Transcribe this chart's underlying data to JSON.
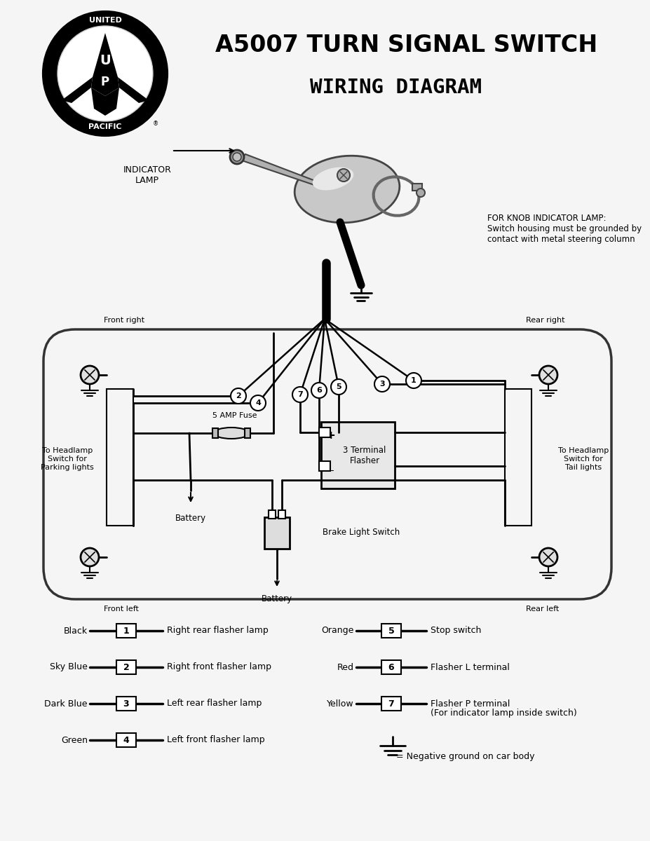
{
  "title1": "A5007 TURN SIGNAL SWITCH",
  "title2": "WIRING DIAGRAM",
  "bg_color": "#f5f5f5",
  "legend_left": [
    {
      "num": "1",
      "label": "Right rear flasher lamp"
    },
    {
      "num": "2",
      "label": "Right front flasher lamp"
    },
    {
      "num": "3",
      "label": "Left rear flasher lamp"
    },
    {
      "num": "4",
      "label": "Left front flasher lamp"
    }
  ],
  "legend_left_colors": [
    "Black",
    "Sky Blue",
    "Dark Blue",
    "Green"
  ],
  "legend_right": [
    {
      "num": "5",
      "label": "Stop switch"
    },
    {
      "num": "6",
      "label": "Flasher L terminal"
    },
    {
      "num": "7",
      "label": "Flasher P terminal\n(For indicator lamp inside switch)"
    }
  ],
  "legend_right_colors": [
    "Orange",
    "Red",
    "Yellow"
  ],
  "ground_label": "= Negative ground on car body",
  "indicator_lamp_label": "INDICATOR\nLAMP",
  "for_knob_text": "FOR KNOB INDICATOR LAMP:\nSwitch housing must be grounded by\ncontact with metal steering column",
  "front_right": "Front right",
  "rear_right": "Rear right",
  "front_left": "Front left",
  "rear_left": "Rear left",
  "headlamp_parking": "To Headlamp\nSwitch for\nParking lights",
  "headlamp_tail": "To Headlamp\nSwitch for\nTail lights",
  "battery1": "Battery",
  "battery2": "Battery",
  "fuse_label": "5 AMP Fuse",
  "flasher_label": "3 Terminal\nFlasher",
  "brake_switch_label": "Brake Light Switch"
}
